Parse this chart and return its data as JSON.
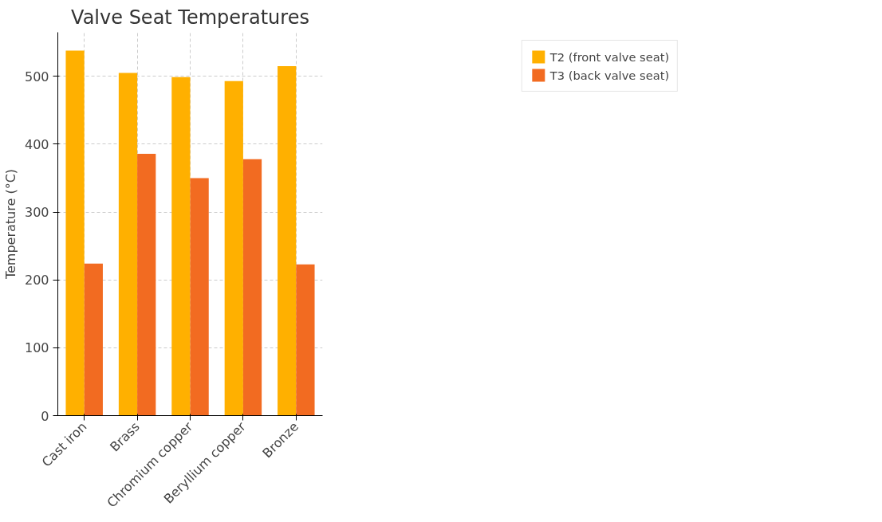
{
  "chart_data": {
    "type": "bar",
    "title": "Valve Seat Temperatures",
    "ylabel": "Temperature (°C)",
    "categories": [
      "Cast iron",
      "Brass",
      "Chromium copper",
      "Beryllium copper",
      "Bronze"
    ],
    "series": [
      {
        "name": "T2 (front valve seat)",
        "color": "#ffb000",
        "values": [
          538,
          505,
          499,
          493,
          515
        ]
      },
      {
        "name": "T3 (back valve seat)",
        "color": "#f26b21",
        "values": [
          224,
          386,
          350,
          378,
          223
        ]
      }
    ],
    "ylim": [
      0,
      565
    ],
    "yticks": [
      0,
      100,
      200,
      300,
      400,
      500
    ],
    "grid": true,
    "legend": "top right"
  }
}
